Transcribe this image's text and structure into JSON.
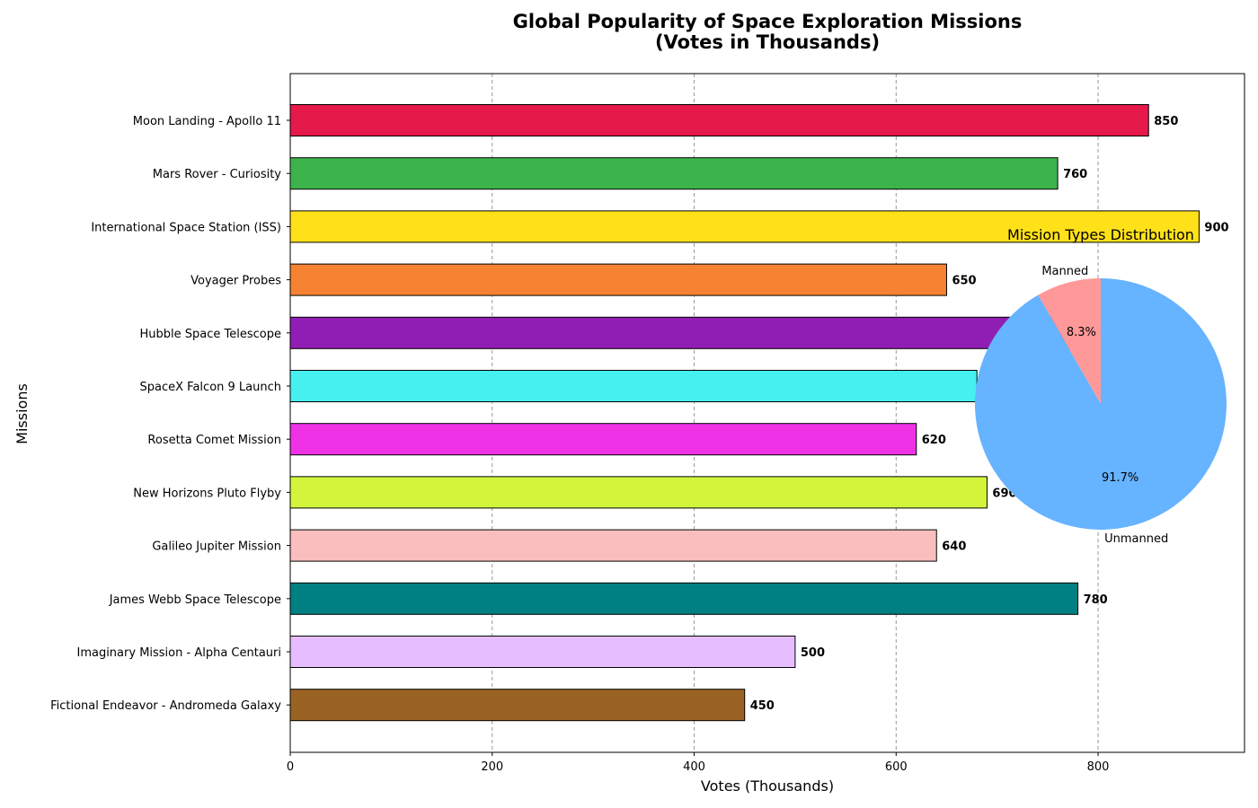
{
  "chart_data": [
    {
      "type": "bar",
      "orientation": "horizontal",
      "title_line1": "Global Popularity of Space Exploration Missions",
      "title_line2": "(Votes in Thousands)",
      "xlabel": "Votes (Thousands)",
      "ylabel": "Missions",
      "xlim": [
        0,
        945
      ],
      "xticks": [
        0,
        200,
        400,
        600,
        800
      ],
      "grid": "x-dashed",
      "categories": [
        "Moon Landing - Apollo 11",
        "Mars Rover - Curiosity",
        "International Space Station (ISS)",
        "Voyager Probes",
        "Hubble Space Telescope",
        "SpaceX Falcon 9 Launch",
        "Rosetta Comet Mission",
        "New Horizons Pluto Flyby",
        "Galileo Jupiter Mission",
        "James Webb Space Telescope",
        "Imaginary Mission - Alpha Centauri",
        "Fictional Endeavor - Andromeda Galaxy"
      ],
      "values": [
        850,
        760,
        900,
        650,
        820,
        680,
        620,
        690,
        640,
        780,
        500,
        450
      ],
      "colors": [
        "#e6194b",
        "#3cb44b",
        "#ffe119",
        "#f58231",
        "#911eb4",
        "#46f0f0",
        "#f032e6",
        "#d2f53c",
        "#fabebe",
        "#008080",
        "#e6beff",
        "#9a6324"
      ]
    },
    {
      "type": "pie",
      "title": "Mission Types Distribution",
      "labels": [
        "Manned",
        "Unmanned"
      ],
      "values": [
        8.3,
        91.7
      ],
      "pct_labels": [
        "8.3%",
        "91.7%"
      ],
      "colors": [
        "#ff9999",
        "#66b3ff"
      ],
      "start_angle": 90
    }
  ]
}
